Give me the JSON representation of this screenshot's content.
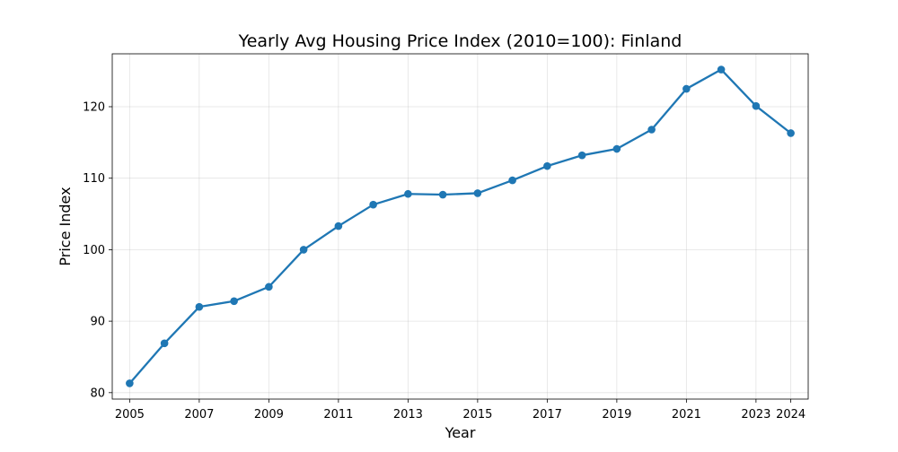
{
  "chart_data": {
    "type": "line",
    "title": "Yearly Avg Housing Price Index (2010=100): Finland",
    "xlabel": "Year",
    "ylabel": "Price Index",
    "x": [
      2005,
      2006,
      2007,
      2008,
      2009,
      2010,
      2011,
      2012,
      2013,
      2014,
      2015,
      2016,
      2017,
      2018,
      2019,
      2020,
      2021,
      2022,
      2023,
      2024
    ],
    "series": [
      {
        "values": [
          81.3,
          86.9,
          92.0,
          92.8,
          94.8,
          100.0,
          103.3,
          106.3,
          107.8,
          107.7,
          107.9,
          109.7,
          111.7,
          113.2,
          114.1,
          116.8,
          122.5,
          125.2,
          120.1,
          116.3
        ],
        "color": "#1f77b4"
      }
    ],
    "xticks": [
      2005,
      2007,
      2009,
      2011,
      2013,
      2015,
      2017,
      2019,
      2021,
      2023,
      2024
    ],
    "xtick_labels": [
      "2005",
      "2007",
      "2009",
      "2011",
      "2013",
      "2015",
      "2017",
      "2019",
      "2021",
      "2023",
      "2024"
    ],
    "yticks": [
      80,
      90,
      100,
      110,
      120
    ],
    "ytick_labels": [
      "80",
      "90",
      "100",
      "110",
      "120"
    ],
    "xlim": [
      2004.5,
      2024.5
    ],
    "ylim": [
      79.1,
      127.4
    ],
    "grid": true,
    "legend": "none"
  }
}
